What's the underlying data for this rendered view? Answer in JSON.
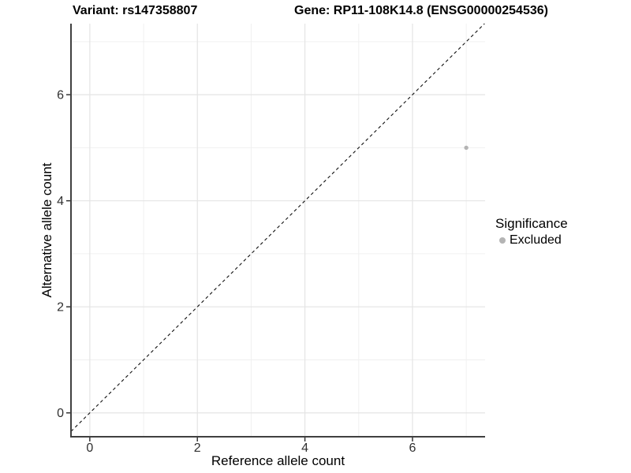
{
  "chart_data": {
    "type": "scatter",
    "title_left": "Variant: rs147358807",
    "title_right": "Gene: RP11-108K14.8 (ENSG00000254536)",
    "xlabel": "Reference allele count",
    "ylabel": "Alternative allele count",
    "xlim": [
      -0.35,
      7.35
    ],
    "ylim": [
      -0.45,
      7.34
    ],
    "xticks": [
      0,
      2,
      4,
      6
    ],
    "yticks": [
      0,
      2,
      4,
      6
    ],
    "minor_xticks": [
      1,
      3,
      5,
      7
    ],
    "minor_yticks": [
      1,
      3,
      5,
      7
    ],
    "grid": "on",
    "points": [
      {
        "x": 7,
        "y": 5,
        "series": "Excluded"
      }
    ],
    "reference_line": {
      "slope": 1,
      "intercept": 0,
      "style": "dashed"
    },
    "legend": {
      "title": "Significance",
      "position": "right",
      "entries": [
        {
          "label": "Excluded",
          "color": "#b4b4b4",
          "marker": "circle"
        }
      ]
    },
    "colors": {
      "background": "#ffffff",
      "grid_major": "#e4e4e4",
      "grid_minor": "#f0f0f0",
      "axis_line": "#404040",
      "tick_mark": "#333333",
      "tick_label": "#303030",
      "point": "#b4b4b4",
      "reference_line": "#111111"
    }
  }
}
